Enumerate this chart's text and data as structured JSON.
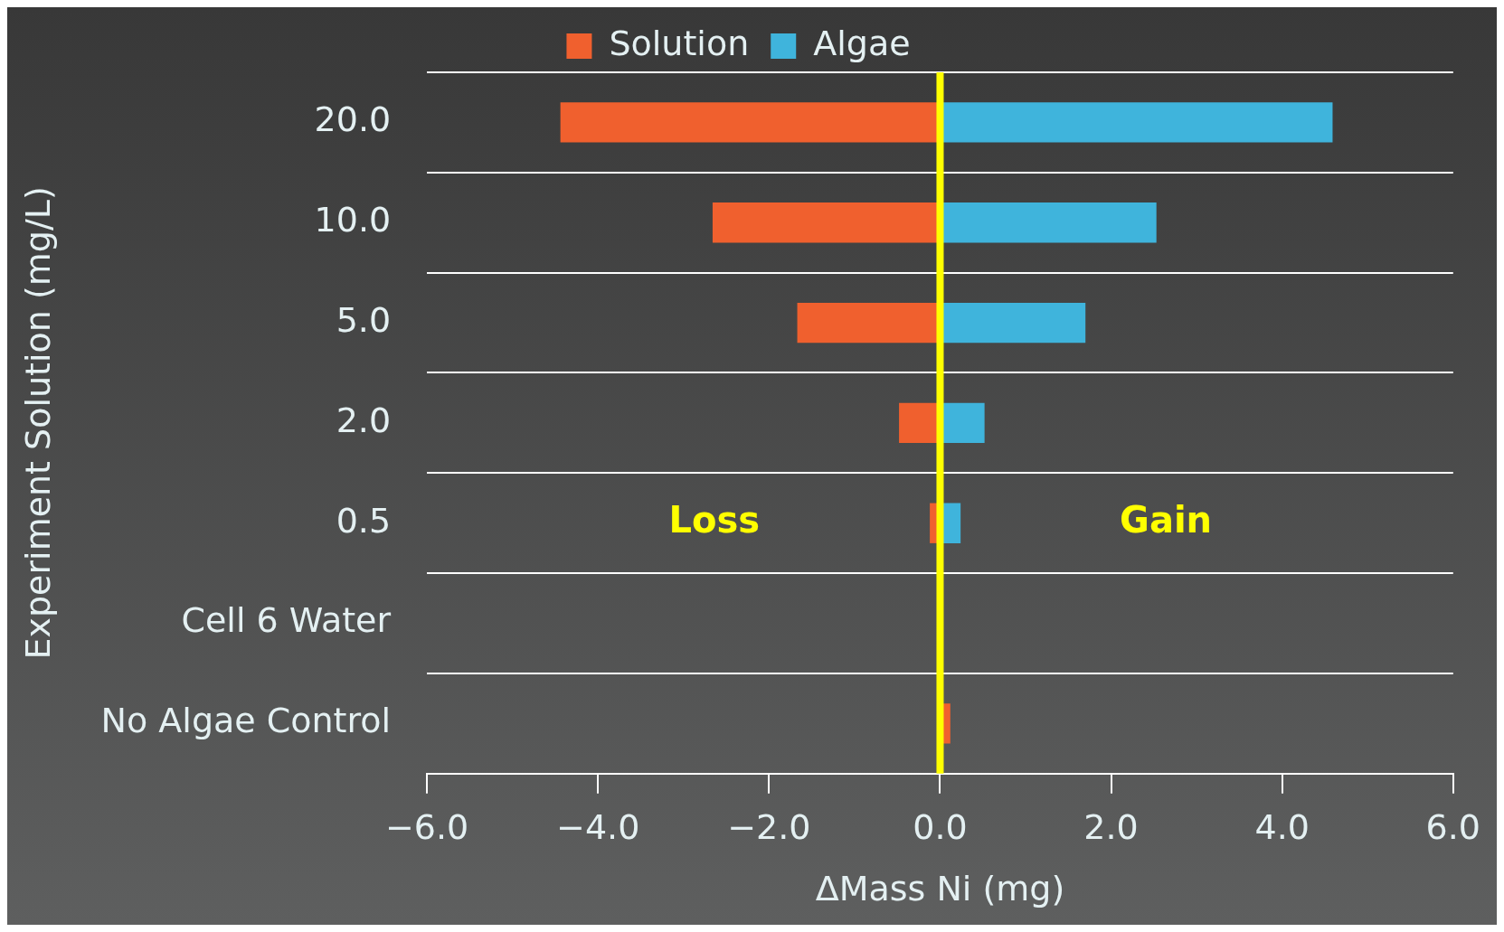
{
  "chart_data": {
    "type": "bar",
    "orientation": "horizontal",
    "stacked": true,
    "categories": [
      "20.0",
      "10.0",
      "5.0",
      "2.0",
      "0.5",
      "Cell 6 Water",
      "No Algae Control"
    ],
    "series": [
      {
        "name": "Solution",
        "color": "#f0602e",
        "values": [
          -4.44,
          -2.66,
          -1.67,
          -0.48,
          -0.12,
          0,
          0.12
        ]
      },
      {
        "name": "Algae",
        "color": "#3fb4dc",
        "values": [
          4.59,
          2.53,
          1.7,
          0.52,
          0.24,
          0,
          0
        ]
      }
    ],
    "xlim": [
      -6,
      6
    ],
    "xticks": [
      {
        "value": -6,
        "label": "−6.0"
      },
      {
        "value": -4,
        "label": "−4.0"
      },
      {
        "value": -2,
        "label": "−2.0"
      },
      {
        "value": 0,
        "label": "0.0"
      },
      {
        "value": 2,
        "label": "2.0"
      },
      {
        "value": 4,
        "label": "4.0"
      },
      {
        "value": 6,
        "label": "6.0"
      }
    ],
    "xlabel": "ΔMass Ni (mg)",
    "ylabel": "Experiment Solution (mg/L)",
    "ref_lines": [
      {
        "axis": "x",
        "value": 0,
        "color": "#ffff00"
      }
    ],
    "annotations": [
      "Loss",
      "Gain"
    ],
    "grid": "y",
    "legend": "top"
  }
}
